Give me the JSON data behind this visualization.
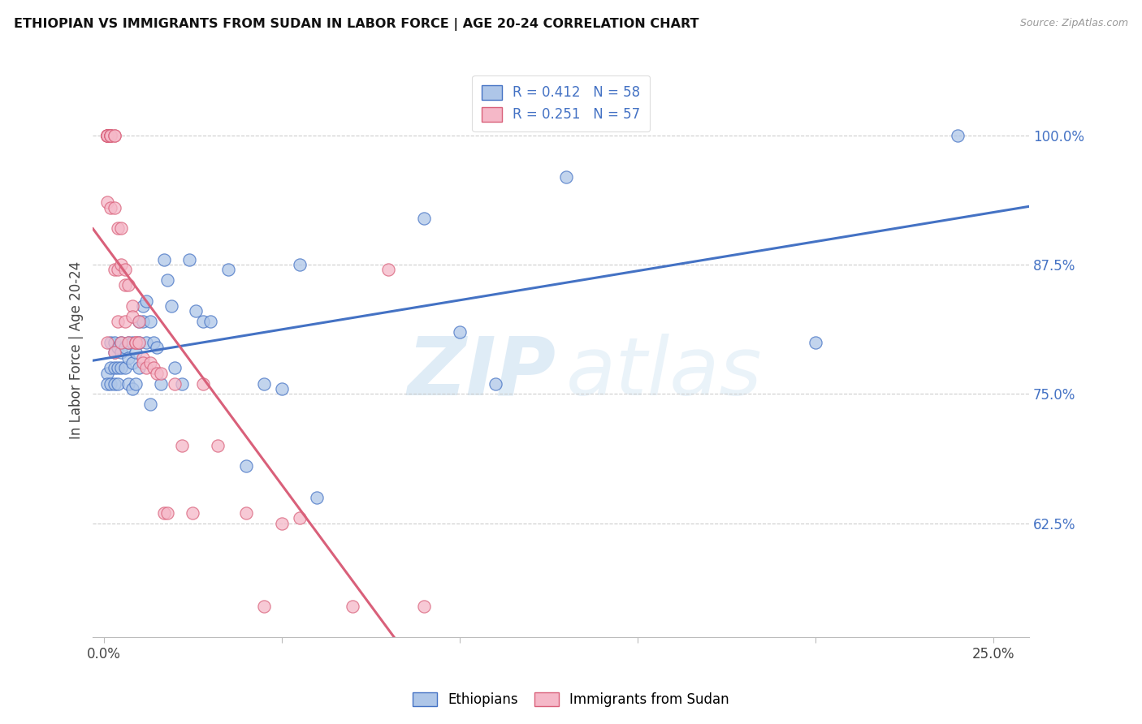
{
  "title": "ETHIOPIAN VS IMMIGRANTS FROM SUDAN IN LABOR FORCE | AGE 20-24 CORRELATION CHART",
  "source": "Source: ZipAtlas.com",
  "ylabel_label": "In Labor Force | Age 20-24",
  "xlim": [
    -0.003,
    0.26
  ],
  "ylim": [
    0.515,
    1.07
  ],
  "blue_R": 0.412,
  "blue_N": 58,
  "pink_R": 0.251,
  "pink_N": 57,
  "blue_color": "#aec6e8",
  "pink_color": "#f5b8c8",
  "blue_line_color": "#4472c4",
  "pink_line_color": "#d9607a",
  "legend_label_blue": "Ethiopians",
  "legend_label_pink": "Immigrants from Sudan",
  "blue_scatter_x": [
    0.001,
    0.001,
    0.002,
    0.002,
    0.002,
    0.003,
    0.003,
    0.003,
    0.003,
    0.004,
    0.004,
    0.004,
    0.005,
    0.005,
    0.005,
    0.006,
    0.006,
    0.007,
    0.007,
    0.007,
    0.008,
    0.008,
    0.008,
    0.009,
    0.009,
    0.01,
    0.01,
    0.01,
    0.011,
    0.011,
    0.012,
    0.012,
    0.013,
    0.013,
    0.014,
    0.015,
    0.016,
    0.017,
    0.018,
    0.019,
    0.02,
    0.022,
    0.024,
    0.026,
    0.028,
    0.03,
    0.035,
    0.04,
    0.045,
    0.05,
    0.055,
    0.06,
    0.09,
    0.1,
    0.11,
    0.13,
    0.2,
    0.24
  ],
  "blue_scatter_y": [
    0.77,
    0.76,
    0.8,
    0.775,
    0.76,
    0.8,
    0.79,
    0.775,
    0.76,
    0.795,
    0.775,
    0.76,
    0.8,
    0.79,
    0.775,
    0.795,
    0.775,
    0.8,
    0.785,
    0.76,
    0.8,
    0.78,
    0.755,
    0.79,
    0.76,
    0.82,
    0.8,
    0.775,
    0.835,
    0.82,
    0.84,
    0.8,
    0.82,
    0.74,
    0.8,
    0.795,
    0.76,
    0.88,
    0.86,
    0.835,
    0.775,
    0.76,
    0.88,
    0.83,
    0.82,
    0.82,
    0.87,
    0.68,
    0.76,
    0.755,
    0.875,
    0.65,
    0.92,
    0.81,
    0.76,
    0.96,
    0.8,
    1.0
  ],
  "pink_scatter_x": [
    0.001,
    0.001,
    0.001,
    0.001,
    0.001,
    0.001,
    0.001,
    0.001,
    0.001,
    0.002,
    0.002,
    0.002,
    0.002,
    0.002,
    0.003,
    0.003,
    0.003,
    0.003,
    0.003,
    0.004,
    0.004,
    0.004,
    0.005,
    0.005,
    0.005,
    0.006,
    0.006,
    0.006,
    0.007,
    0.007,
    0.008,
    0.008,
    0.009,
    0.009,
    0.01,
    0.01,
    0.011,
    0.011,
    0.012,
    0.013,
    0.014,
    0.015,
    0.016,
    0.017,
    0.018,
    0.02,
    0.022,
    0.025,
    0.028,
    0.032,
    0.04,
    0.045,
    0.05,
    0.055,
    0.07,
    0.08,
    0.09
  ],
  "pink_scatter_y": [
    1.0,
    1.0,
    1.0,
    1.0,
    1.0,
    1.0,
    1.0,
    0.935,
    0.8,
    1.0,
    1.0,
    1.0,
    1.0,
    0.93,
    1.0,
    1.0,
    0.93,
    0.87,
    0.79,
    0.91,
    0.87,
    0.82,
    0.91,
    0.875,
    0.8,
    0.87,
    0.855,
    0.82,
    0.855,
    0.8,
    0.835,
    0.825,
    0.8,
    0.8,
    0.82,
    0.8,
    0.785,
    0.78,
    0.775,
    0.78,
    0.775,
    0.77,
    0.77,
    0.635,
    0.635,
    0.76,
    0.7,
    0.635,
    0.76,
    0.7,
    0.635,
    0.545,
    0.625,
    0.63,
    0.545,
    0.87,
    0.545
  ]
}
